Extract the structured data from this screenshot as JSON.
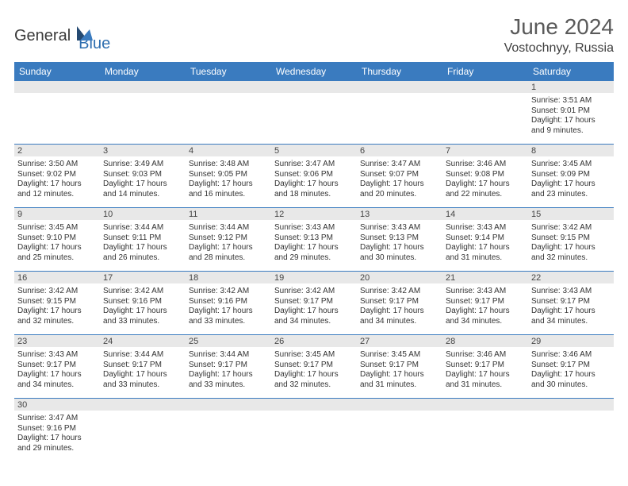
{
  "branding": {
    "name_part1": "General",
    "name_part2": "Blue",
    "color_dark": "#3a3a3a",
    "color_blue": "#2f6fb0"
  },
  "header": {
    "title": "June 2024",
    "location": "Vostochnyy, Russia",
    "title_fontsize": 28,
    "location_fontsize": 16,
    "title_color": "#5a5a5a"
  },
  "calendar": {
    "header_bg": "#3a7bbf",
    "header_text_color": "#ffffff",
    "daynum_bg": "#e8e8e8",
    "border_color": "#3a7bbf",
    "cell_fontsize": 10,
    "day_labels": [
      "Sunday",
      "Monday",
      "Tuesday",
      "Wednesday",
      "Thursday",
      "Friday",
      "Saturday"
    ],
    "weeks": [
      [
        null,
        null,
        null,
        null,
        null,
        null,
        {
          "n": "1",
          "sr": "Sunrise: 3:51 AM",
          "ss": "Sunset: 9:01 PM",
          "dl": "Daylight: 17 hours and 9 minutes."
        }
      ],
      [
        {
          "n": "2",
          "sr": "Sunrise: 3:50 AM",
          "ss": "Sunset: 9:02 PM",
          "dl": "Daylight: 17 hours and 12 minutes."
        },
        {
          "n": "3",
          "sr": "Sunrise: 3:49 AM",
          "ss": "Sunset: 9:03 PM",
          "dl": "Daylight: 17 hours and 14 minutes."
        },
        {
          "n": "4",
          "sr": "Sunrise: 3:48 AM",
          "ss": "Sunset: 9:05 PM",
          "dl": "Daylight: 17 hours and 16 minutes."
        },
        {
          "n": "5",
          "sr": "Sunrise: 3:47 AM",
          "ss": "Sunset: 9:06 PM",
          "dl": "Daylight: 17 hours and 18 minutes."
        },
        {
          "n": "6",
          "sr": "Sunrise: 3:47 AM",
          "ss": "Sunset: 9:07 PM",
          "dl": "Daylight: 17 hours and 20 minutes."
        },
        {
          "n": "7",
          "sr": "Sunrise: 3:46 AM",
          "ss": "Sunset: 9:08 PM",
          "dl": "Daylight: 17 hours and 22 minutes."
        },
        {
          "n": "8",
          "sr": "Sunrise: 3:45 AM",
          "ss": "Sunset: 9:09 PM",
          "dl": "Daylight: 17 hours and 23 minutes."
        }
      ],
      [
        {
          "n": "9",
          "sr": "Sunrise: 3:45 AM",
          "ss": "Sunset: 9:10 PM",
          "dl": "Daylight: 17 hours and 25 minutes."
        },
        {
          "n": "10",
          "sr": "Sunrise: 3:44 AM",
          "ss": "Sunset: 9:11 PM",
          "dl": "Daylight: 17 hours and 26 minutes."
        },
        {
          "n": "11",
          "sr": "Sunrise: 3:44 AM",
          "ss": "Sunset: 9:12 PM",
          "dl": "Daylight: 17 hours and 28 minutes."
        },
        {
          "n": "12",
          "sr": "Sunrise: 3:43 AM",
          "ss": "Sunset: 9:13 PM",
          "dl": "Daylight: 17 hours and 29 minutes."
        },
        {
          "n": "13",
          "sr": "Sunrise: 3:43 AM",
          "ss": "Sunset: 9:13 PM",
          "dl": "Daylight: 17 hours and 30 minutes."
        },
        {
          "n": "14",
          "sr": "Sunrise: 3:43 AM",
          "ss": "Sunset: 9:14 PM",
          "dl": "Daylight: 17 hours and 31 minutes."
        },
        {
          "n": "15",
          "sr": "Sunrise: 3:42 AM",
          "ss": "Sunset: 9:15 PM",
          "dl": "Daylight: 17 hours and 32 minutes."
        }
      ],
      [
        {
          "n": "16",
          "sr": "Sunrise: 3:42 AM",
          "ss": "Sunset: 9:15 PM",
          "dl": "Daylight: 17 hours and 32 minutes."
        },
        {
          "n": "17",
          "sr": "Sunrise: 3:42 AM",
          "ss": "Sunset: 9:16 PM",
          "dl": "Daylight: 17 hours and 33 minutes."
        },
        {
          "n": "18",
          "sr": "Sunrise: 3:42 AM",
          "ss": "Sunset: 9:16 PM",
          "dl": "Daylight: 17 hours and 33 minutes."
        },
        {
          "n": "19",
          "sr": "Sunrise: 3:42 AM",
          "ss": "Sunset: 9:17 PM",
          "dl": "Daylight: 17 hours and 34 minutes."
        },
        {
          "n": "20",
          "sr": "Sunrise: 3:42 AM",
          "ss": "Sunset: 9:17 PM",
          "dl": "Daylight: 17 hours and 34 minutes."
        },
        {
          "n": "21",
          "sr": "Sunrise: 3:43 AM",
          "ss": "Sunset: 9:17 PM",
          "dl": "Daylight: 17 hours and 34 minutes."
        },
        {
          "n": "22",
          "sr": "Sunrise: 3:43 AM",
          "ss": "Sunset: 9:17 PM",
          "dl": "Daylight: 17 hours and 34 minutes."
        }
      ],
      [
        {
          "n": "23",
          "sr": "Sunrise: 3:43 AM",
          "ss": "Sunset: 9:17 PM",
          "dl": "Daylight: 17 hours and 34 minutes."
        },
        {
          "n": "24",
          "sr": "Sunrise: 3:44 AM",
          "ss": "Sunset: 9:17 PM",
          "dl": "Daylight: 17 hours and 33 minutes."
        },
        {
          "n": "25",
          "sr": "Sunrise: 3:44 AM",
          "ss": "Sunset: 9:17 PM",
          "dl": "Daylight: 17 hours and 33 minutes."
        },
        {
          "n": "26",
          "sr": "Sunrise: 3:45 AM",
          "ss": "Sunset: 9:17 PM",
          "dl": "Daylight: 17 hours and 32 minutes."
        },
        {
          "n": "27",
          "sr": "Sunrise: 3:45 AM",
          "ss": "Sunset: 9:17 PM",
          "dl": "Daylight: 17 hours and 31 minutes."
        },
        {
          "n": "28",
          "sr": "Sunrise: 3:46 AM",
          "ss": "Sunset: 9:17 PM",
          "dl": "Daylight: 17 hours and 31 minutes."
        },
        {
          "n": "29",
          "sr": "Sunrise: 3:46 AM",
          "ss": "Sunset: 9:17 PM",
          "dl": "Daylight: 17 hours and 30 minutes."
        }
      ],
      [
        {
          "n": "30",
          "sr": "Sunrise: 3:47 AM",
          "ss": "Sunset: 9:16 PM",
          "dl": "Daylight: 17 hours and 29 minutes."
        },
        null,
        null,
        null,
        null,
        null,
        null
      ]
    ]
  }
}
